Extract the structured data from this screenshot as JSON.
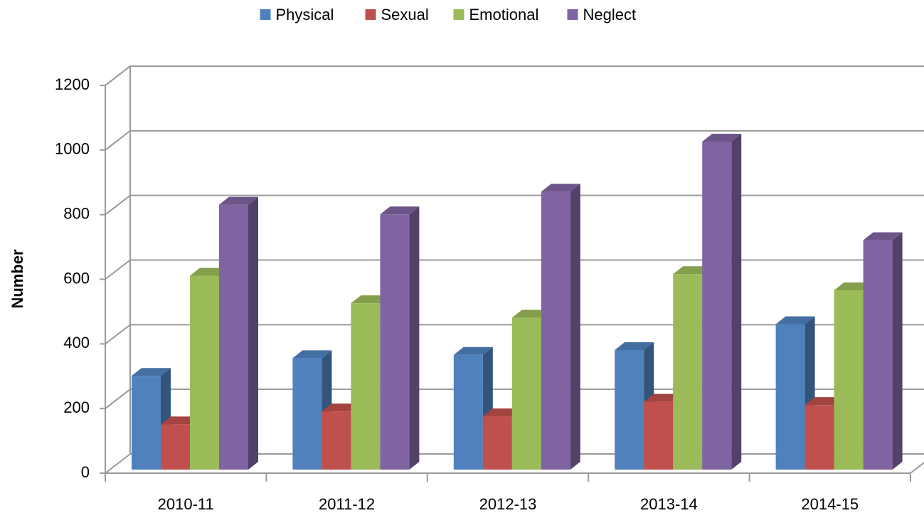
{
  "chart_data": {
    "type": "bar3d",
    "y_label": "Number",
    "categories": [
      "2010-11",
      "2011-12",
      "2012-13",
      "2013-14",
      "2014-15"
    ],
    "series": [
      {
        "name": "Physical",
        "color": "#4f81bd",
        "values": [
          290,
          345,
          355,
          370,
          450
        ]
      },
      {
        "name": "Sexual",
        "color": "#c0504d",
        "values": [
          140,
          180,
          165,
          210,
          200
        ]
      },
      {
        "name": "Emotional",
        "color": "#9bbb59",
        "values": [
          600,
          515,
          470,
          605,
          555
        ]
      },
      {
        "name": "Neglect",
        "color": "#8064a2",
        "values": [
          820,
          790,
          860,
          1015,
          710
        ]
      }
    ],
    "ylim": [
      0,
      1200
    ],
    "yticks": [
      0,
      200,
      400,
      600,
      800,
      1000,
      1200
    ],
    "grid": true,
    "legend": "top"
  }
}
